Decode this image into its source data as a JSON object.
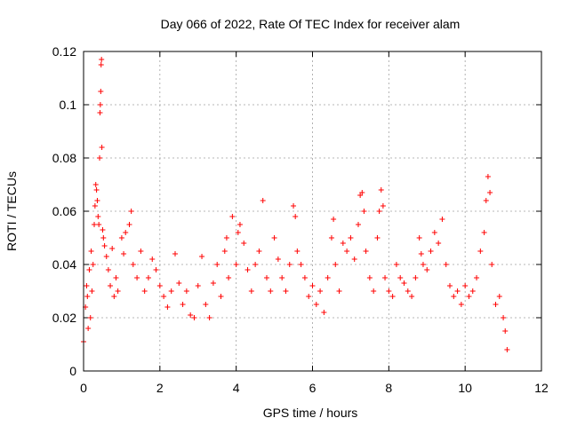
{
  "chart_data": {
    "type": "scatter",
    "title": "Day 066 of 2022, Rate Of TEC Index for receiver alam",
    "xlabel": "GPS time / hours",
    "ylabel": "ROTI / TECUs",
    "xlim": [
      0,
      12
    ],
    "ylim": [
      0,
      0.12
    ],
    "x_ticks": [
      0,
      2,
      4,
      6,
      8,
      10,
      12
    ],
    "x_tick_labels": [
      "0",
      "2",
      "4",
      "6",
      "8",
      "10",
      "12"
    ],
    "y_ticks": [
      0,
      0.02,
      0.04,
      0.06,
      0.08,
      0.1,
      0.12
    ],
    "y_tick_labels": [
      "0",
      "0.02",
      "0.04",
      "0.06",
      "0.08",
      "0.1",
      "0.12"
    ],
    "grid": true,
    "marker": "+",
    "color": "#ff0000",
    "series": [
      {
        "points": [
          [
            0.0,
            0.011
          ],
          [
            0.05,
            0.024
          ],
          [
            0.08,
            0.032
          ],
          [
            0.1,
            0.028
          ],
          [
            0.12,
            0.016
          ],
          [
            0.15,
            0.038
          ],
          [
            0.18,
            0.02
          ],
          [
            0.2,
            0.045
          ],
          [
            0.22,
            0.03
          ],
          [
            0.25,
            0.04
          ],
          [
            0.28,
            0.055
          ],
          [
            0.3,
            0.062
          ],
          [
            0.32,
            0.07
          ],
          [
            0.34,
            0.068
          ],
          [
            0.36,
            0.064
          ],
          [
            0.38,
            0.058
          ],
          [
            0.4,
            0.055
          ],
          [
            0.42,
            0.08
          ],
          [
            0.43,
            0.097
          ],
          [
            0.44,
            0.1
          ],
          [
            0.45,
            0.105
          ],
          [
            0.46,
            0.115
          ],
          [
            0.47,
            0.117
          ],
          [
            0.48,
            0.084
          ],
          [
            0.5,
            0.053
          ],
          [
            0.52,
            0.05
          ],
          [
            0.55,
            0.047
          ],
          [
            0.6,
            0.043
          ],
          [
            0.65,
            0.038
          ],
          [
            0.7,
            0.032
          ],
          [
            0.75,
            0.046
          ],
          [
            0.8,
            0.028
          ],
          [
            0.85,
            0.035
          ],
          [
            0.9,
            0.03
          ],
          [
            1.0,
            0.05
          ],
          [
            1.05,
            0.044
          ],
          [
            1.1,
            0.052
          ],
          [
            1.2,
            0.055
          ],
          [
            1.25,
            0.06
          ],
          [
            1.3,
            0.04
          ],
          [
            1.4,
            0.035
          ],
          [
            1.5,
            0.045
          ],
          [
            1.6,
            0.03
          ],
          [
            1.7,
            0.035
          ],
          [
            1.8,
            0.042
          ],
          [
            1.9,
            0.038
          ],
          [
            2.0,
            0.032
          ],
          [
            2.1,
            0.028
          ],
          [
            2.2,
            0.024
          ],
          [
            2.3,
            0.03
          ],
          [
            2.4,
            0.044
          ],
          [
            2.5,
            0.033
          ],
          [
            2.6,
            0.025
          ],
          [
            2.7,
            0.03
          ],
          [
            2.8,
            0.021
          ],
          [
            2.9,
            0.02
          ],
          [
            3.0,
            0.032
          ],
          [
            3.1,
            0.043
          ],
          [
            3.2,
            0.025
          ],
          [
            3.3,
            0.02
          ],
          [
            3.4,
            0.033
          ],
          [
            3.5,
            0.04
          ],
          [
            3.6,
            0.028
          ],
          [
            3.7,
            0.045
          ],
          [
            3.75,
            0.05
          ],
          [
            3.8,
            0.035
          ],
          [
            3.9,
            0.058
          ],
          [
            4.0,
            0.04
          ],
          [
            4.05,
            0.052
          ],
          [
            4.1,
            0.055
          ],
          [
            4.2,
            0.048
          ],
          [
            4.3,
            0.038
          ],
          [
            4.4,
            0.03
          ],
          [
            4.5,
            0.04
          ],
          [
            4.6,
            0.045
          ],
          [
            4.7,
            0.064
          ],
          [
            4.8,
            0.035
          ],
          [
            4.9,
            0.03
          ],
          [
            5.0,
            0.05
          ],
          [
            5.1,
            0.042
          ],
          [
            5.2,
            0.035
          ],
          [
            5.3,
            0.03
          ],
          [
            5.4,
            0.04
          ],
          [
            5.5,
            0.062
          ],
          [
            5.55,
            0.058
          ],
          [
            5.6,
            0.045
          ],
          [
            5.7,
            0.04
          ],
          [
            5.8,
            0.035
          ],
          [
            5.9,
            0.028
          ],
          [
            6.0,
            0.032
          ],
          [
            6.1,
            0.025
          ],
          [
            6.2,
            0.03
          ],
          [
            6.3,
            0.022
          ],
          [
            6.4,
            0.035
          ],
          [
            6.5,
            0.05
          ],
          [
            6.55,
            0.057
          ],
          [
            6.6,
            0.04
          ],
          [
            6.7,
            0.03
          ],
          [
            6.8,
            0.048
          ],
          [
            6.9,
            0.045
          ],
          [
            7.0,
            0.05
          ],
          [
            7.1,
            0.042
          ],
          [
            7.2,
            0.055
          ],
          [
            7.25,
            0.066
          ],
          [
            7.3,
            0.067
          ],
          [
            7.35,
            0.06
          ],
          [
            7.4,
            0.045
          ],
          [
            7.5,
            0.035
          ],
          [
            7.6,
            0.03
          ],
          [
            7.7,
            0.05
          ],
          [
            7.75,
            0.06
          ],
          [
            7.8,
            0.068
          ],
          [
            7.85,
            0.062
          ],
          [
            7.9,
            0.035
          ],
          [
            8.0,
            0.03
          ],
          [
            8.1,
            0.028
          ],
          [
            8.2,
            0.04
          ],
          [
            8.3,
            0.035
          ],
          [
            8.4,
            0.033
          ],
          [
            8.5,
            0.03
          ],
          [
            8.6,
            0.028
          ],
          [
            8.7,
            0.035
          ],
          [
            8.8,
            0.05
          ],
          [
            8.85,
            0.044
          ],
          [
            8.9,
            0.04
          ],
          [
            9.0,
            0.038
          ],
          [
            9.1,
            0.045
          ],
          [
            9.2,
            0.052
          ],
          [
            9.3,
            0.048
          ],
          [
            9.4,
            0.057
          ],
          [
            9.5,
            0.04
          ],
          [
            9.6,
            0.032
          ],
          [
            9.7,
            0.028
          ],
          [
            9.8,
            0.03
          ],
          [
            9.9,
            0.025
          ],
          [
            10.0,
            0.032
          ],
          [
            10.1,
            0.028
          ],
          [
            10.2,
            0.03
          ],
          [
            10.3,
            0.035
          ],
          [
            10.4,
            0.045
          ],
          [
            10.5,
            0.052
          ],
          [
            10.55,
            0.064
          ],
          [
            10.6,
            0.073
          ],
          [
            10.65,
            0.067
          ],
          [
            10.7,
            0.04
          ],
          [
            10.8,
            0.025
          ],
          [
            10.9,
            0.028
          ],
          [
            11.0,
            0.02
          ],
          [
            11.05,
            0.015
          ],
          [
            11.1,
            0.008
          ]
        ]
      }
    ]
  }
}
